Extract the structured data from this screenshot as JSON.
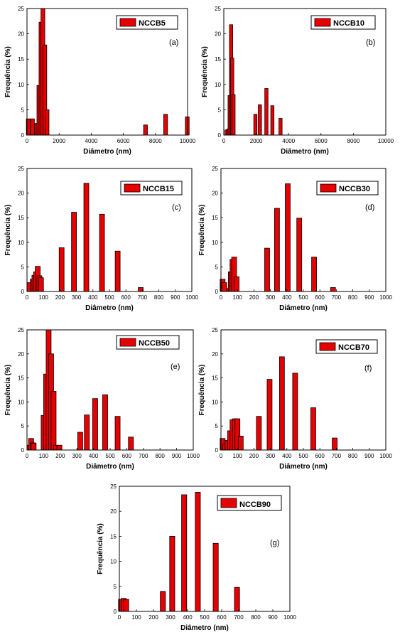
{
  "chart_data": [
    {
      "type": "bar",
      "legend": "NCCB5",
      "panel_label": "(a)",
      "xlabel": "Diâmetro (nm)",
      "ylabel": "Frequência (%)",
      "xlim": [
        0,
        10000
      ],
      "ylim": [
        0,
        25
      ],
      "xticks": [
        0,
        2000,
        4000,
        6000,
        8000,
        10000
      ],
      "yticks": [
        0,
        5,
        10,
        15,
        20,
        25
      ],
      "bar_width": 240,
      "series": [
        {
          "x": [
            80,
            340,
            610,
            740,
            870,
            990,
            1110,
            1250,
            7380,
            8630,
            9980
          ],
          "values": [
            3.2,
            3.2,
            2.3,
            9.8,
            22.3,
            25.0,
            17.8,
            5.0,
            2.0,
            4.1,
            3.6
          ]
        }
      ]
    },
    {
      "type": "bar",
      "legend": "NCCB10",
      "panel_label": "(b)",
      "xlabel": "Diâmetro (nm)",
      "ylabel": "Frequência (%)",
      "xlim": [
        0,
        10000
      ],
      "ylim": [
        0,
        25
      ],
      "xticks": [
        0,
        2000,
        4000,
        6000,
        8000,
        10000
      ],
      "yticks": [
        0,
        5,
        10,
        15,
        20,
        25
      ],
      "bar_width": 200,
      "series": [
        {
          "x": [
            170,
            280,
            360,
            450,
            520,
            600,
            1950,
            2230,
            2630,
            3000,
            3500
          ],
          "values": [
            1.0,
            1.2,
            7.8,
            21.8,
            15.2,
            8.0,
            4.1,
            6.0,
            9.2,
            5.8,
            3.3
          ]
        }
      ]
    },
    {
      "type": "bar",
      "legend": "NCCB15",
      "panel_label": "(c)",
      "xlabel": "Diâmetro (nm)",
      "ylabel": "Frequência (%)",
      "xlim": [
        0,
        1000
      ],
      "ylim": [
        0,
        25
      ],
      "xticks": [
        0,
        100,
        200,
        300,
        400,
        500,
        600,
        700,
        800,
        900,
        1000
      ],
      "yticks": [
        0,
        5,
        10,
        15,
        20,
        25
      ],
      "bar_width": 30,
      "series": [
        {
          "x": [
            15,
            35,
            45,
            55,
            65,
            75,
            85,
            210,
            285,
            360,
            455,
            550,
            690
          ],
          "values": [
            1.8,
            2.5,
            3.3,
            4.0,
            5.1,
            3.2,
            2.8,
            8.9,
            16.1,
            22.0,
            15.7,
            8.2,
            0.8
          ]
        }
      ]
    },
    {
      "type": "bar",
      "legend": "NCCB30",
      "panel_label": "(d)",
      "xlabel": "Diâmetro (nm)",
      "ylabel": "Frequência (%)",
      "xlim": [
        0,
        1000
      ],
      "ylim": [
        0,
        25
      ],
      "xticks": [
        0,
        100,
        200,
        300,
        400,
        500,
        600,
        700,
        800,
        900,
        1000
      ],
      "yticks": [
        0,
        5,
        10,
        15,
        20,
        25
      ],
      "bar_width": 30,
      "series": [
        {
          "x": [
            10,
            20,
            50,
            60,
            70,
            80,
            95,
            280,
            340,
            405,
            475,
            565,
            680
          ],
          "values": [
            2.5,
            1.8,
            0.6,
            4.0,
            6.5,
            7.0,
            3.0,
            8.8,
            16.9,
            21.9,
            14.9,
            7.0,
            0.8
          ]
        }
      ]
    },
    {
      "type": "bar",
      "legend": "NCCB50",
      "panel_label": "(e)",
      "xlabel": "Diâmetro (nm)",
      "ylabel": "Frequência (%)",
      "xlim": [
        0,
        1000
      ],
      "ylim": [
        0,
        25
      ],
      "xticks": [
        0,
        100,
        200,
        300,
        400,
        500,
        600,
        700,
        800,
        900,
        1000
      ],
      "yticks": [
        0,
        5,
        10,
        15,
        20,
        25
      ],
      "bar_width": 30,
      "series": [
        {
          "x": [
            15,
            25,
            35,
            40,
            100,
            115,
            130,
            145,
            160,
            175,
            195,
            320,
            360,
            410,
            470,
            545,
            625
          ],
          "values": [
            1.0,
            2.4,
            1.5,
            1.4,
            7.2,
            15.8,
            25.0,
            20.0,
            12.2,
            1.0,
            1.0,
            3.7,
            7.3,
            10.7,
            11.5,
            7.0,
            2.7
          ]
        }
      ]
    },
    {
      "type": "bar",
      "legend": "NCCB70",
      "panel_label": "(f)",
      "xlabel": "Diâmetro (nm)",
      "ylabel": "Frequência (%)",
      "xlim": [
        0,
        1000
      ],
      "ylim": [
        0,
        25
      ],
      "xticks": [
        0,
        100,
        200,
        300,
        400,
        500,
        600,
        700,
        800,
        900,
        1000
      ],
      "yticks": [
        0,
        5,
        10,
        15,
        20,
        25
      ],
      "bar_width": 30,
      "series": [
        {
          "x": [
            10,
            25,
            40,
            55,
            70,
            85,
            100,
            120,
            230,
            295,
            370,
            450,
            560,
            690
          ],
          "values": [
            2.4,
            1.2,
            2.0,
            4.0,
            6.3,
            6.5,
            6.5,
            2.9,
            7.0,
            14.7,
            19.4,
            16.0,
            8.8,
            2.5
          ]
        }
      ]
    },
    {
      "type": "bar",
      "legend": "NCCB90",
      "panel_label": "(g)",
      "xlabel": "Diâmetro (nm)",
      "ylabel": "Frequência (%)",
      "xlim": [
        0,
        1000
      ],
      "ylim": [
        0,
        25
      ],
      "xticks": [
        0,
        100,
        200,
        300,
        400,
        500,
        600,
        700,
        800,
        900,
        1000
      ],
      "yticks": [
        0,
        5,
        10,
        15,
        20,
        25
      ],
      "bar_width": 30,
      "series": [
        {
          "x": [
            10,
            25,
            40,
            255,
            310,
            380,
            460,
            565,
            690
          ],
          "values": [
            2.4,
            2.6,
            2.4,
            4.0,
            15.0,
            23.3,
            23.8,
            13.6,
            4.8
          ]
        }
      ]
    }
  ]
}
